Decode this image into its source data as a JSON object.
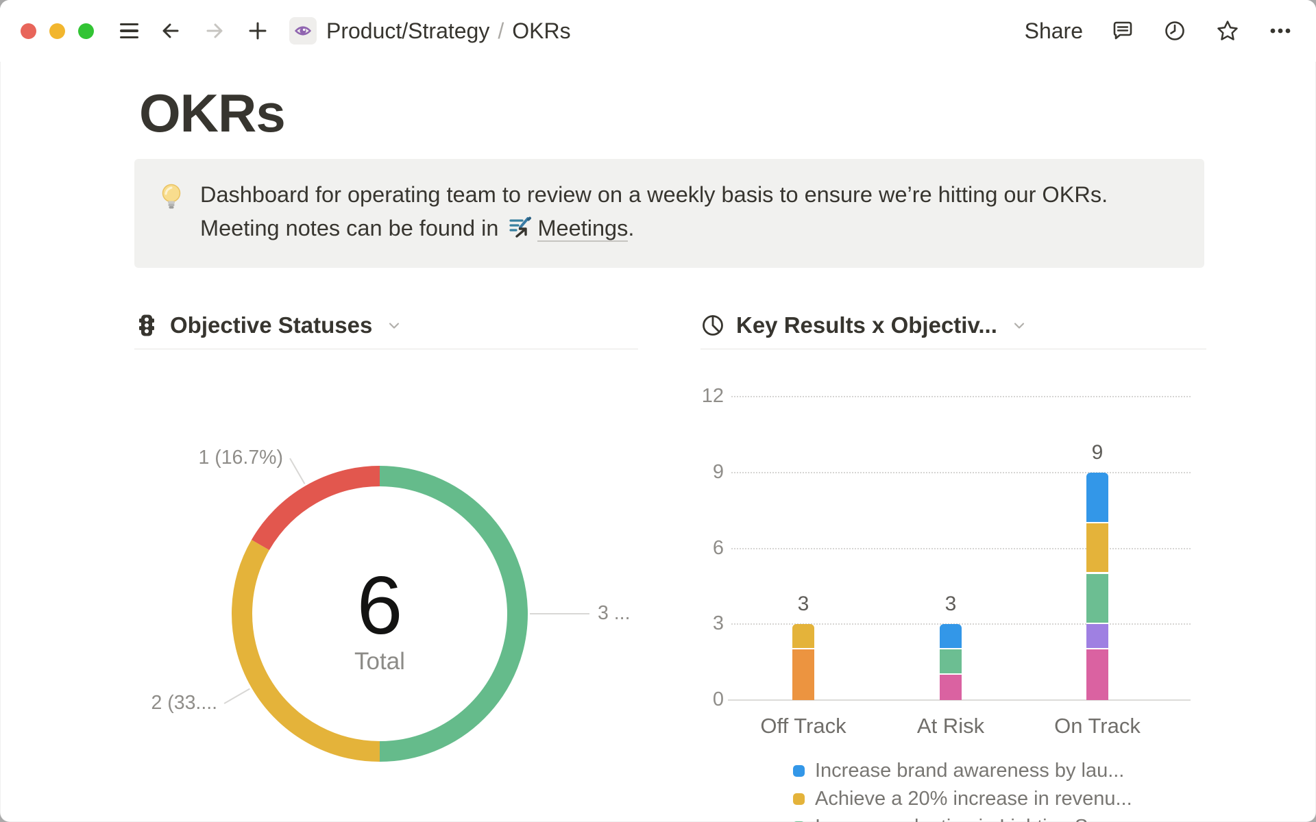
{
  "window": {
    "breadcrumb": {
      "icon": "eye-icon",
      "path": "Product/Strategy",
      "separator": "/",
      "current": "OKRs"
    },
    "share_label": "Share"
  },
  "page": {
    "title": "OKRs",
    "callout": {
      "icon": "lightbulb-icon",
      "text": "Dashboard for operating team to review on a weekly basis to ensure we’re hitting our OKRs. Meeting notes can be found in ",
      "link_icon": "meetings-page-icon",
      "link_text": "Meetings",
      "suffix": "."
    }
  },
  "chart_data": [
    {
      "type": "donut",
      "title": "Objective Statuses",
      "icon": "traffic-light-icon",
      "total_value": "6",
      "total_label": "Total",
      "start": "top",
      "direction": "clockwise",
      "segments": [
        {
          "value": 3,
          "color": "#65bb8b",
          "label": "3 ..."
        },
        {
          "value": 2,
          "color": "#e4b33a",
          "label": "2 (33...."
        },
        {
          "value": 1,
          "color": "#e2574e",
          "label": "1 (16.7%)"
        }
      ]
    },
    {
      "type": "stacked-bar",
      "title": "Key Results x Objectiv...",
      "icon": "pie-chart-icon",
      "categories": [
        "Off Track",
        "At Risk",
        "On Track"
      ],
      "bar_totals": [
        3,
        3,
        9
      ],
      "y_ticks": [
        0,
        3,
        6,
        9,
        12
      ],
      "ylim": [
        0,
        12
      ],
      "grid": "dotted",
      "legend_position": "bottom",
      "series": [
        {
          "legend": "Increase brand awareness by lau...",
          "color": "#3397e8",
          "values": [
            0,
            1,
            2
          ]
        },
        {
          "legend": "Achieve a 20% increase in revenu...",
          "color": "#e4b33a",
          "values": [
            1,
            0,
            2
          ]
        },
        {
          "legend": "Increase adoption in Lighting Sea...",
          "color": "#6cbe92",
          "values": [
            0,
            1,
            2
          ]
        },
        {
          "legend": "",
          "color": "#9f80e2",
          "values": [
            0,
            0,
            1
          ]
        },
        {
          "legend": "",
          "color": "#da62a1",
          "values": [
            0,
            1,
            2
          ]
        },
        {
          "legend": "",
          "color": "#ec9440",
          "values": [
            2,
            0,
            0
          ]
        }
      ]
    }
  ]
}
